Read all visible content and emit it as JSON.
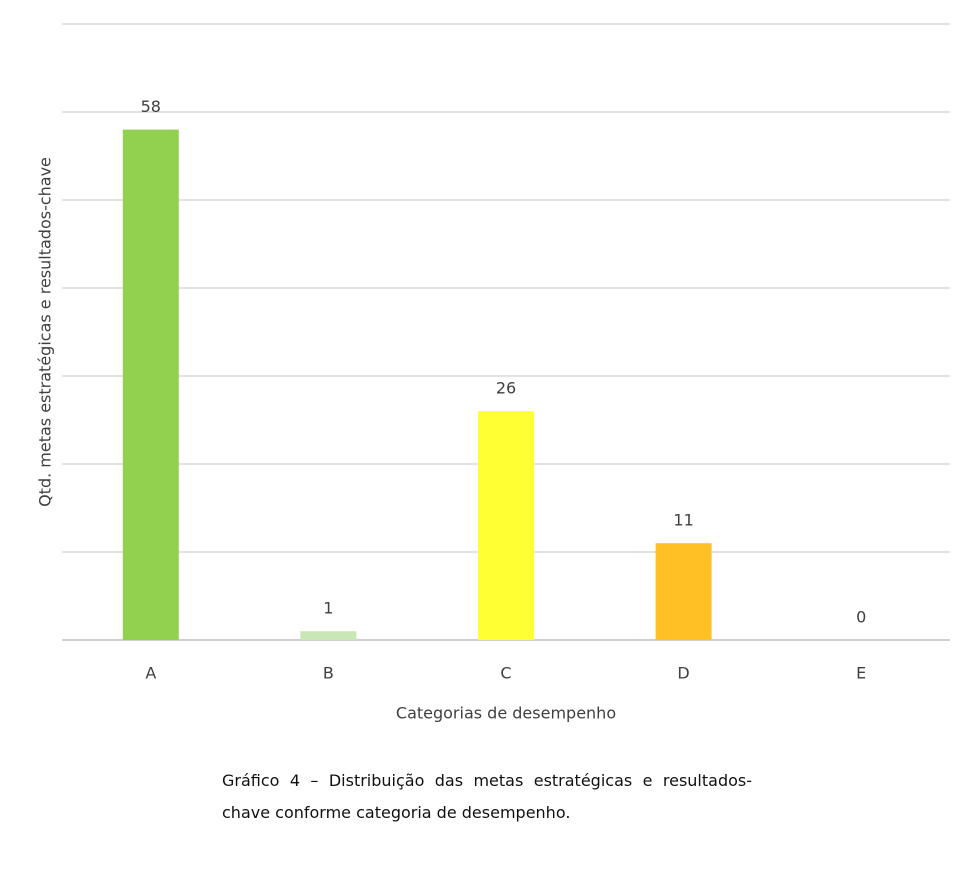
{
  "chart_data": {
    "type": "bar",
    "categories": [
      "A",
      "B",
      "C",
      "D",
      "E"
    ],
    "values": [
      58,
      1,
      26,
      11,
      0
    ],
    "colors": [
      "#92d050",
      "#c9e6b6",
      "#ffff33",
      "#ffc025",
      "#a9a9a9"
    ],
    "xlabel": "Categorias de desempenho",
    "ylabel": "Qtd. metas estratégicas e resultados-chave",
    "ylim": [
      0,
      70
    ],
    "yticks": [
      0,
      10,
      20,
      30,
      40,
      50,
      60,
      70
    ],
    "grid": true,
    "caption": "Gráfico 4 – Distribuição das metas estratégicas e resultados-chave conforme categoria de desempenho."
  }
}
